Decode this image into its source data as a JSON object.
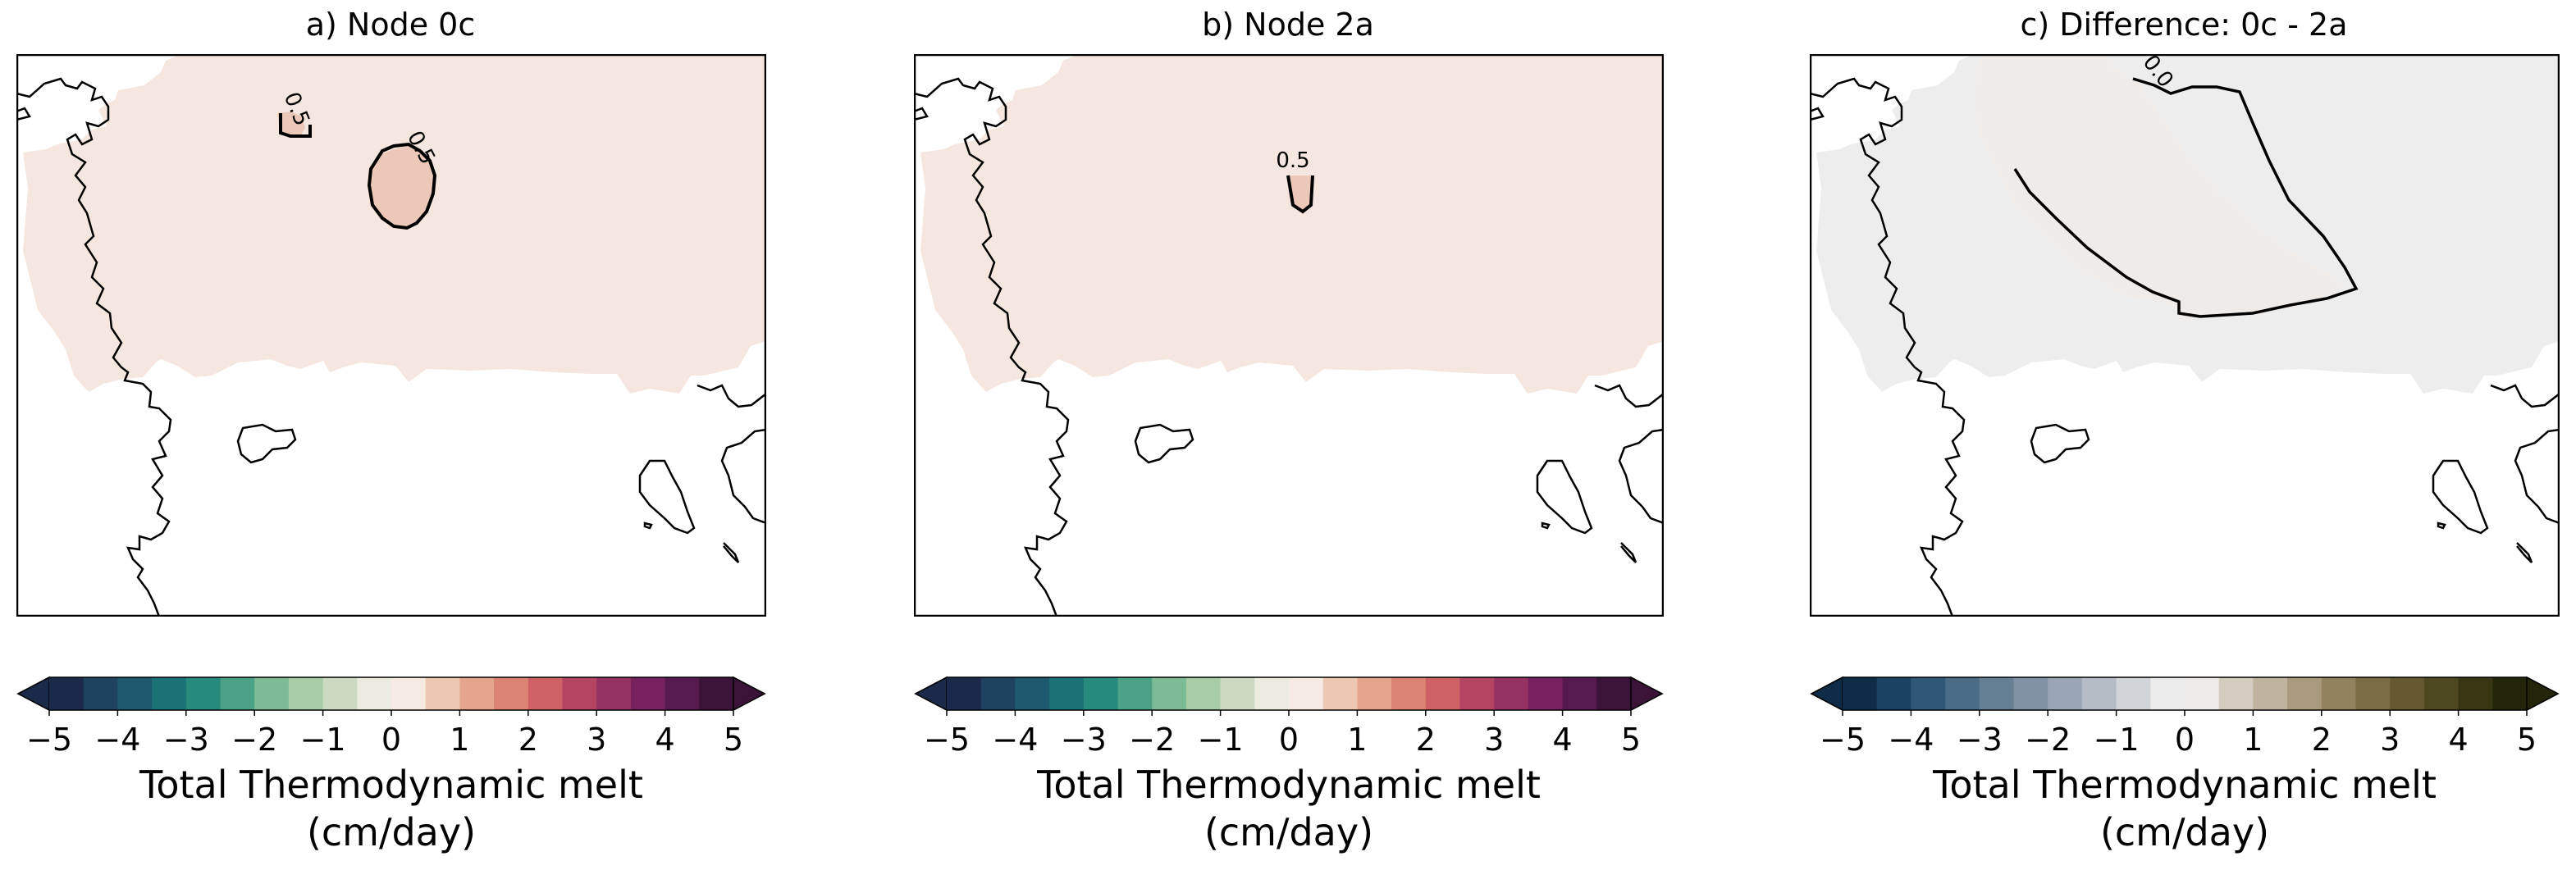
{
  "panels": [
    {
      "title": "a) Node 0c",
      "fill": "#f5e6df",
      "highmelt_fill": "#ecc8b8",
      "contour_labels": [
        "0.5",
        "0.5"
      ],
      "colorbar": {
        "label_line1": "Total Thermodynamic melt",
        "label_line2": "(cm/day)",
        "ticks": [
          "−5",
          "−4",
          "−3",
          "−2",
          "−1",
          "0",
          "1",
          "2",
          "3",
          "4",
          "5"
        ],
        "colors": [
          "#1b2a4a",
          "#1f4261",
          "#1d5a70",
          "#1a7275",
          "#268a7c",
          "#4ba185",
          "#7dba96",
          "#a8cca8",
          "#cdd9c2",
          "#ecebdf",
          "#f6ebe2",
          "#ecc8b4",
          "#e5a58c",
          "#dd8372",
          "#cd6165",
          "#b44562",
          "#963262",
          "#77215e",
          "#561a4f",
          "#3b1238"
        ]
      }
    },
    {
      "title": "b) Node 2a",
      "fill": "#f5e6df",
      "highmelt_fill": "#ecc8b8",
      "contour_labels": [
        "0.5"
      ],
      "colorbar": {
        "label_line1": "Total Thermodynamic melt",
        "label_line2": "(cm/day)",
        "ticks": [
          "−5",
          "−4",
          "−3",
          "−2",
          "−1",
          "0",
          "1",
          "2",
          "3",
          "4",
          "5"
        ],
        "colors": [
          "#1b2a4a",
          "#1f4261",
          "#1d5a70",
          "#1a7275",
          "#268a7c",
          "#4ba185",
          "#7dba96",
          "#a8cca8",
          "#cdd9c2",
          "#ecebdf",
          "#f6ebe2",
          "#ecc8b4",
          "#e5a58c",
          "#dd8372",
          "#cd6165",
          "#b44562",
          "#963262",
          "#77215e",
          "#561a4f",
          "#3b1238"
        ]
      }
    },
    {
      "title": "c) Difference: 0c - 2a",
      "fill": "#eeeded",
      "highmelt_fill": "#efebe8",
      "contour_labels": [
        "0.0"
      ],
      "colorbar": {
        "label_line1": "Total Thermodynamic melt",
        "label_line2": "(cm/day)",
        "ticks": [
          "−5",
          "−4",
          "−3",
          "−2",
          "−1",
          "0",
          "1",
          "2",
          "3",
          "4",
          "5"
        ],
        "colors": [
          "#0e2c48",
          "#1b4263",
          "#2f5877",
          "#4a6c86",
          "#657f95",
          "#8093a4",
          "#9aa6b3",
          "#b5bcc5",
          "#d1d4d8",
          "#ebebec",
          "#eeecea",
          "#d4cdbf",
          "#bfb49e",
          "#a89a7d",
          "#928260",
          "#7b6c45",
          "#645930",
          "#4d481f",
          "#383612",
          "#232608"
        ]
      }
    }
  ]
}
